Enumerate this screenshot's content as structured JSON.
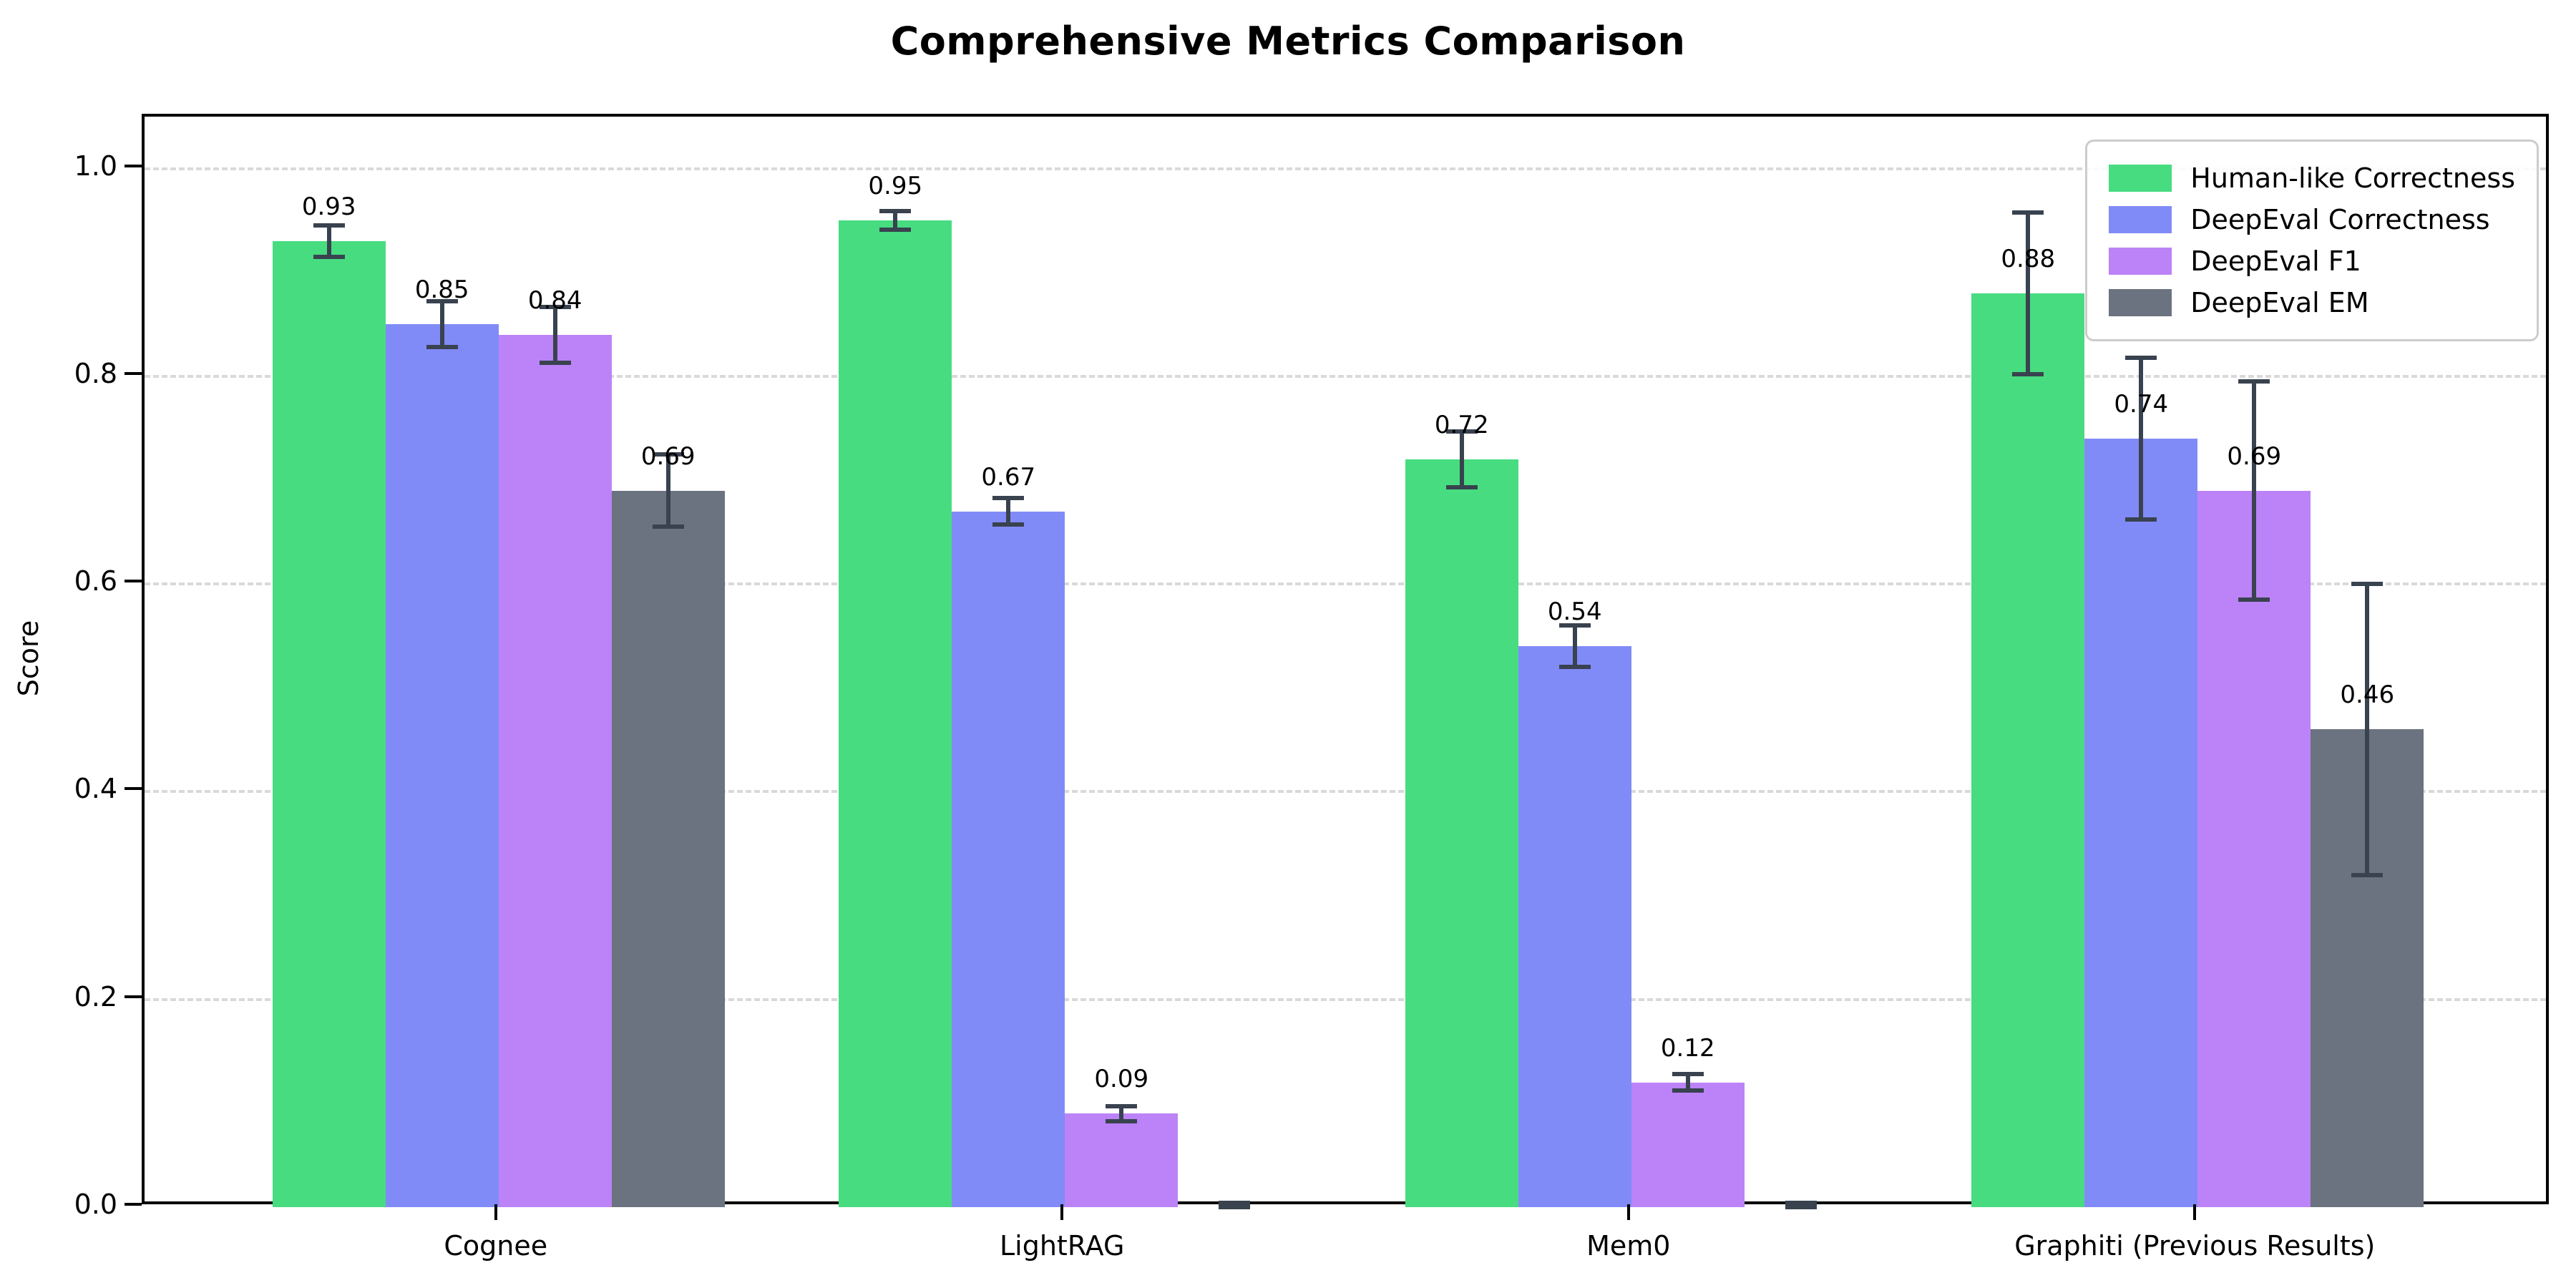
{
  "title": "Comprehensive Metrics Comparison",
  "ylabel": "Score",
  "chart_data": {
    "type": "bar",
    "title": "Comprehensive Metrics Comparison",
    "xlabel": "",
    "ylabel": "Score",
    "categories": [
      "Cognee",
      "LightRAG",
      "Mem0",
      "Graphiti (Previous Results)"
    ],
    "series": [
      {
        "name": "Human-like Correctness",
        "color": "#47dc80",
        "values": [
          0.93,
          0.95,
          0.72,
          0.88
        ],
        "errors": [
          0.015,
          0.009,
          0.027,
          0.078
        ],
        "labels": [
          "0.93",
          "0.95",
          "0.72",
          "0.88"
        ]
      },
      {
        "name": "DeepEval Correctness",
        "color": "#818bf7",
        "values": [
          0.85,
          0.67,
          0.54,
          0.74
        ],
        "errors": [
          0.022,
          0.013,
          0.02,
          0.078
        ],
        "labels": [
          "0.85",
          "0.67",
          "0.54",
          "0.74"
        ]
      },
      {
        "name": "DeepEval F1",
        "color": "#bb83f7",
        "values": [
          0.84,
          0.09,
          0.12,
          0.69
        ],
        "errors": [
          0.027,
          0.007,
          0.008,
          0.105
        ],
        "labels": [
          "0.84",
          "0.09",
          "0.12",
          "0.69"
        ]
      },
      {
        "name": "DeepEval EM",
        "color": "#6b7280",
        "values": [
          0.69,
          0.0,
          0.0,
          0.46
        ],
        "errors": [
          0.035,
          0.004,
          0.004,
          0.14
        ],
        "labels": [
          "0.69",
          "",
          "",
          "0.46"
        ]
      }
    ],
    "yticks": [
      0.0,
      0.2,
      0.4,
      0.6,
      0.8,
      1.0
    ],
    "ytick_labels": [
      "0.0",
      "0.2",
      "0.4",
      "0.6",
      "0.8",
      "1.0"
    ],
    "ylim": [
      0,
      1.05
    ],
    "grid": "horizontal-dashed",
    "grid_color": "#d9d9d9",
    "errorbar_color": "#39424f",
    "legend_position": "upper right"
  }
}
